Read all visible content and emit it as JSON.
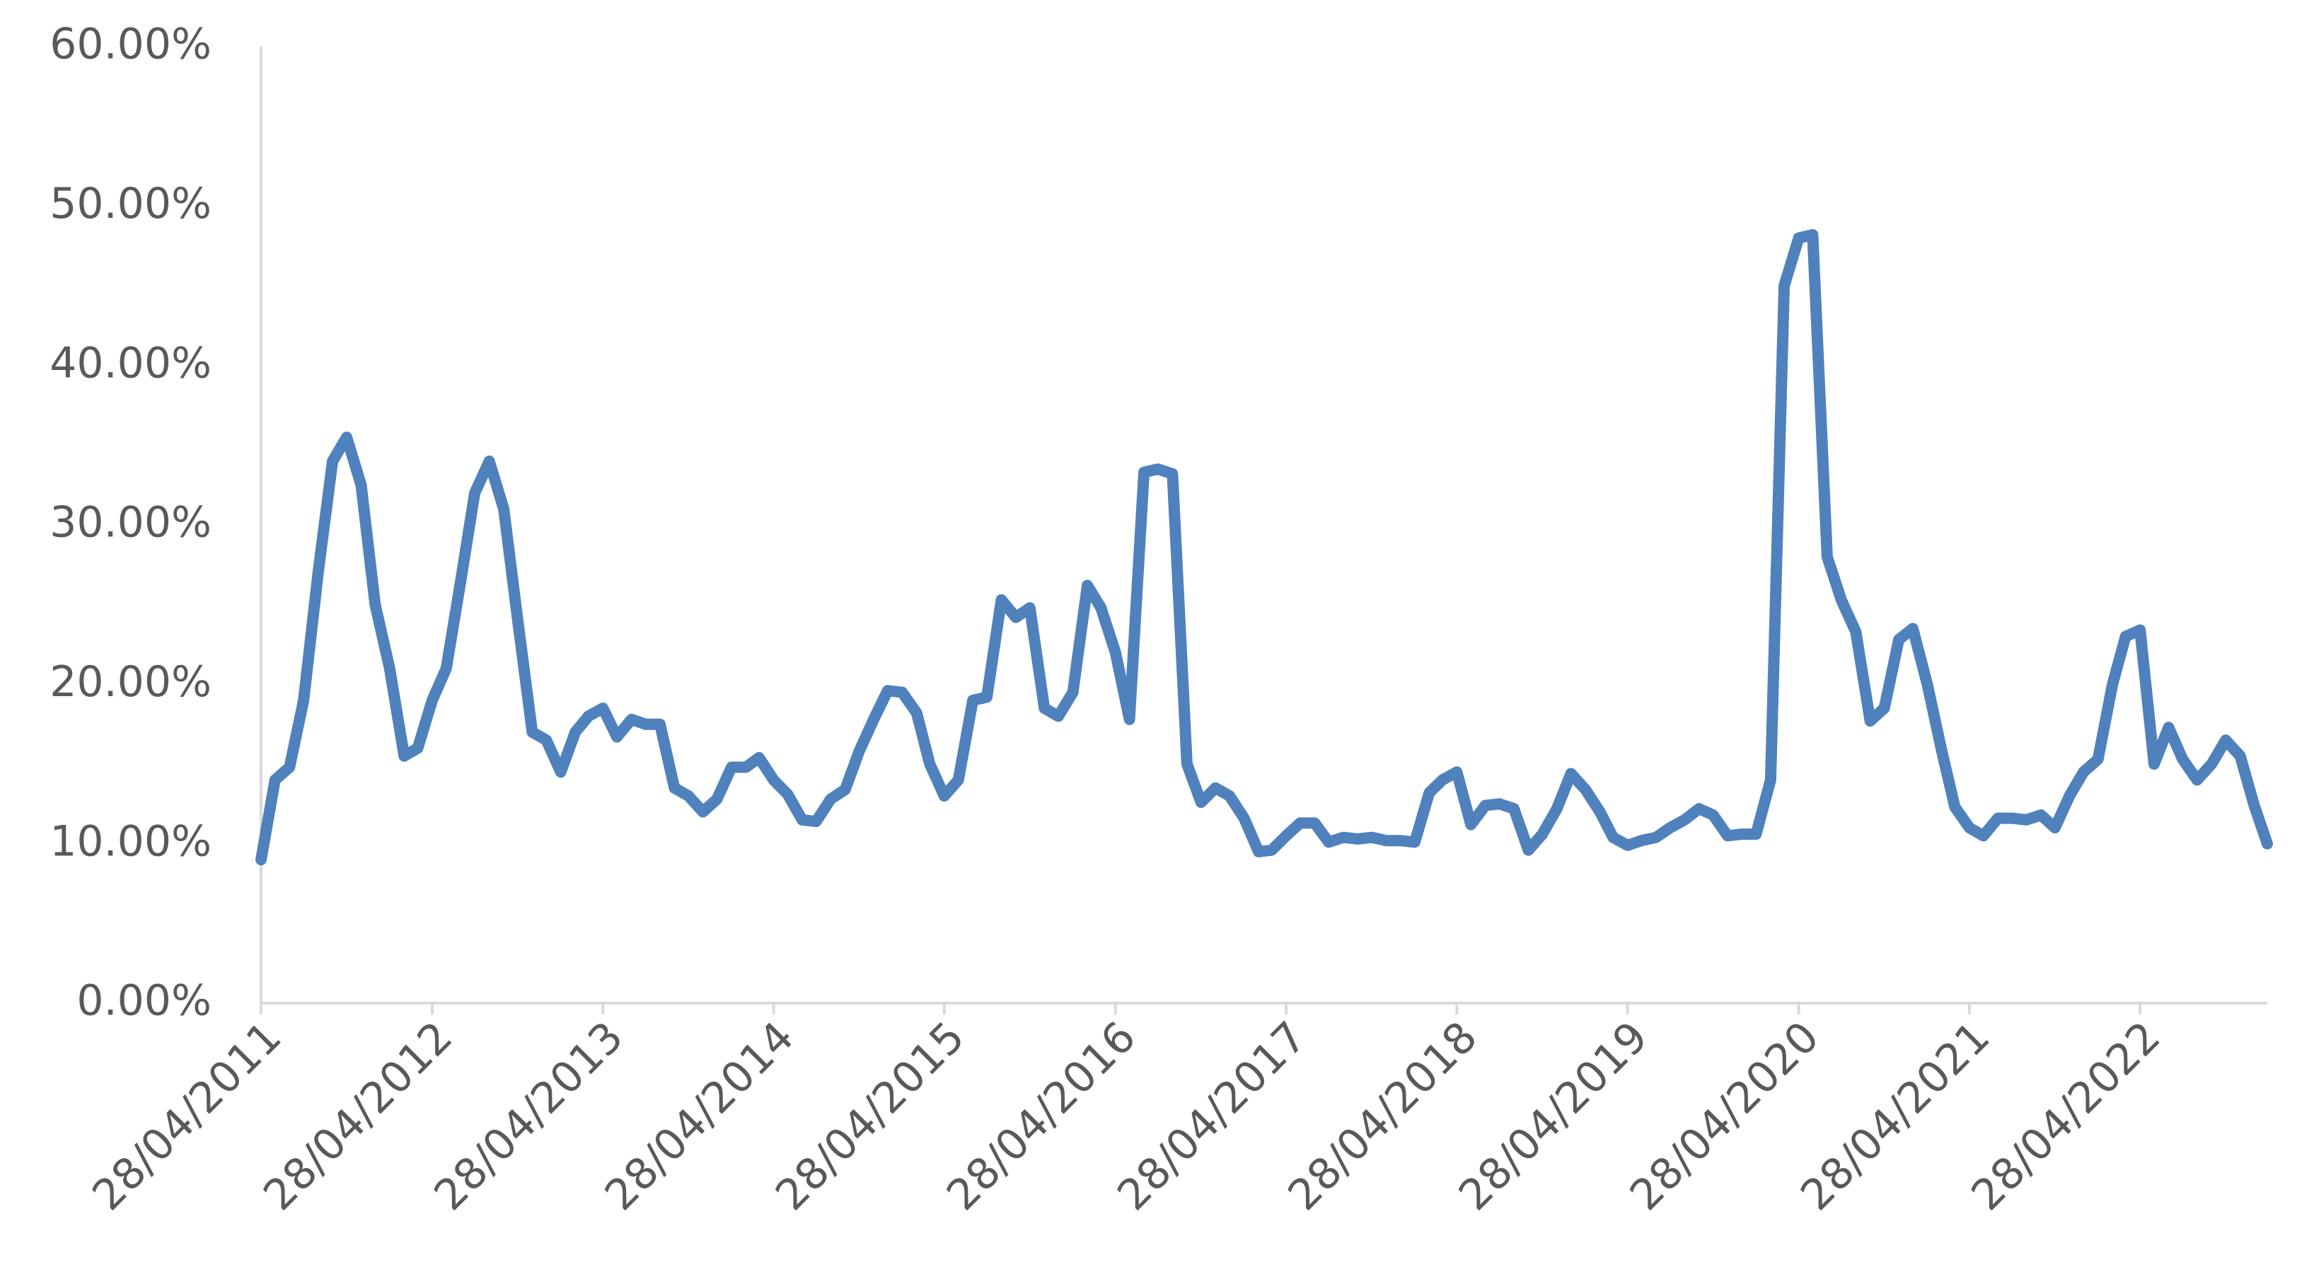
{
  "chart_data": {
    "type": "line",
    "color": "#4f81bd",
    "x": [
      "2011-04-28",
      "2011-05-28",
      "2011-06-28",
      "2011-07-28",
      "2011-08-28",
      "2011-09-28",
      "2011-10-28",
      "2011-11-28",
      "2011-12-28",
      "2012-01-28",
      "2012-02-28",
      "2012-03-28",
      "2012-04-28",
      "2012-05-28",
      "2012-06-28",
      "2012-07-28",
      "2012-08-28",
      "2012-09-28",
      "2012-10-28",
      "2012-11-28",
      "2012-12-28",
      "2013-01-28",
      "2013-02-28",
      "2013-03-28",
      "2013-04-28",
      "2013-05-28",
      "2013-06-28",
      "2013-07-28",
      "2013-08-28",
      "2013-09-28",
      "2013-10-28",
      "2013-11-28",
      "2013-12-28",
      "2014-01-28",
      "2014-02-28",
      "2014-03-28",
      "2014-04-28",
      "2014-05-28",
      "2014-06-28",
      "2014-07-28",
      "2014-08-28",
      "2014-09-28",
      "2014-10-28",
      "2014-11-28",
      "2014-12-28",
      "2015-01-28",
      "2015-02-28",
      "2015-03-28",
      "2015-04-28",
      "2015-05-28",
      "2015-06-28",
      "2015-07-28",
      "2015-08-28",
      "2015-09-28",
      "2015-10-28",
      "2015-11-28",
      "2015-12-28",
      "2016-01-28",
      "2016-02-28",
      "2016-03-28",
      "2016-04-28",
      "2016-05-28",
      "2016-06-28",
      "2016-07-28",
      "2016-08-28",
      "2016-09-28",
      "2016-10-28",
      "2016-11-28",
      "2016-12-28",
      "2017-01-28",
      "2017-02-28",
      "2017-03-28",
      "2017-04-28",
      "2017-05-28",
      "2017-06-28",
      "2017-07-28",
      "2017-08-28",
      "2017-09-28",
      "2017-10-28",
      "2017-11-28",
      "2017-12-28",
      "2018-01-28",
      "2018-02-28",
      "2018-03-28",
      "2018-04-28",
      "2018-05-28",
      "2018-06-28",
      "2018-07-28",
      "2018-08-28",
      "2018-09-28",
      "2018-10-28",
      "2018-11-28",
      "2018-12-28",
      "2019-01-28",
      "2019-02-28",
      "2019-03-28",
      "2019-04-28",
      "2019-05-28",
      "2019-06-28",
      "2019-07-28",
      "2019-08-28",
      "2019-09-28",
      "2019-10-28",
      "2019-11-28",
      "2019-12-28",
      "2020-01-28",
      "2020-02-28",
      "2020-03-28",
      "2020-04-28",
      "2020-05-28",
      "2020-06-28",
      "2020-07-28",
      "2020-08-28",
      "2020-09-28",
      "2020-10-28",
      "2020-11-28",
      "2020-12-28",
      "2021-01-28",
      "2021-02-28",
      "2021-03-28",
      "2021-04-28",
      "2021-05-28",
      "2021-06-28",
      "2021-07-28",
      "2021-08-28",
      "2021-09-28",
      "2021-10-28",
      "2021-11-28",
      "2021-12-28",
      "2022-01-28",
      "2022-02-28",
      "2022-03-28",
      "2022-04-28",
      "2022-05-28",
      "2022-06-28",
      "2022-07-28",
      "2022-08-28",
      "2022-09-28",
      "2022-10-28",
      "2022-11-28",
      "2022-12-28",
      "2023-01-25"
    ],
    "values": [
      9,
      14,
      14.8,
      19,
      27,
      34,
      35.5,
      32.5,
      25,
      21,
      15.5,
      16,
      19,
      21,
      26.5,
      32,
      34,
      31,
      24,
      17,
      16.5,
      14.5,
      17,
      18,
      18.5,
      16.7,
      17.8,
      17.5,
      17.5,
      13.5,
      13,
      12,
      12.8,
      14.8,
      14.8,
      15.4,
      14,
      13.1,
      11.5,
      11.4,
      12.8,
      13.4,
      15.8,
      17.8,
      19.6,
      19.5,
      18.2,
      15,
      13,
      14,
      19,
      19.2,
      25.3,
      24.2,
      24.8,
      18.5,
      18,
      19.5,
      26.2,
      24.8,
      22,
      17.8,
      33.3,
      33.5,
      33.2,
      15,
      12.6,
      13.5,
      13,
      11.6,
      9.5,
      9.6,
      10.5,
      11.3,
      11.3,
      10.1,
      10.4,
      10.3,
      10.4,
      10.2,
      10.2,
      10.1,
      13.2,
      14,
      14.5,
      11.2,
      12.4,
      12.5,
      12.2,
      9.6,
      10.6,
      12.2,
      14.4,
      13.4,
      12,
      10.4,
      9.9,
      10.2,
      10.4,
      11,
      11.5,
      12.2,
      11.8,
      10.5,
      10.6,
      10.6,
      14,
      45,
      48,
      48.2,
      28,
      25.3,
      23.3,
      17.7,
      18.5,
      22.8,
      23.5,
      20,
      15.8,
      12.3,
      11,
      10.5,
      11.6,
      11.6,
      11.5,
      11.8,
      11,
      13,
      14.5,
      15.3,
      20,
      23,
      23.4,
      15,
      17.3,
      15.3,
      14,
      15,
      16.5,
      15.5,
      12.4,
      10
    ],
    "xlim": [
      "2011-04-28",
      "2023-01-25"
    ],
    "xticks": [
      {
        "value": "2011-04-28",
        "label": "28/04/2011"
      },
      {
        "value": "2012-04-28",
        "label": "28/04/2012"
      },
      {
        "value": "2013-04-28",
        "label": "28/04/2013"
      },
      {
        "value": "2014-04-28",
        "label": "28/04/2014"
      },
      {
        "value": "2015-04-28",
        "label": "28/04/2015"
      },
      {
        "value": "2016-04-28",
        "label": "28/04/2016"
      },
      {
        "value": "2017-04-28",
        "label": "28/04/2017"
      },
      {
        "value": "2018-04-28",
        "label": "28/04/2018"
      },
      {
        "value": "2019-04-28",
        "label": "28/04/2019"
      },
      {
        "value": "2020-04-28",
        "label": "28/04/2020"
      },
      {
        "value": "2021-04-28",
        "label": "28/04/2021"
      },
      {
        "value": "2022-04-28",
        "label": "28/04/2022"
      }
    ],
    "ylim": [
      0,
      60
    ],
    "yticks": [
      {
        "value": 0,
        "label": "0.00%"
      },
      {
        "value": 10,
        "label": "10.00%"
      },
      {
        "value": 20,
        "label": "20.00%"
      },
      {
        "value": 30,
        "label": "30.00%"
      },
      {
        "value": 40,
        "label": "40.00%"
      },
      {
        "value": 50,
        "label": "50.00%"
      },
      {
        "value": 60,
        "label": "60.00%"
      }
    ],
    "grid": false
  }
}
